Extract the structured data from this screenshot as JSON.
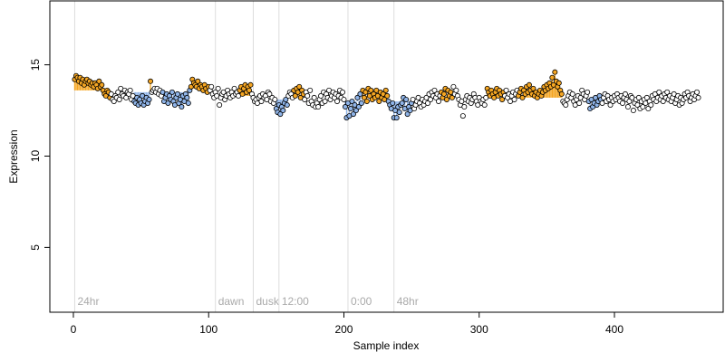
{
  "chart_data": {
    "type": "scatter",
    "xlabel": "Sample index",
    "ylabel": "Expression",
    "xlim": [
      -17.4,
      480.4
    ],
    "ylim": [
      1.45,
      18.5
    ],
    "xticks": [
      0,
      100,
      200,
      300,
      400
    ],
    "yticks": [
      5,
      10,
      15
    ],
    "point_color": "#ffffff",
    "edge_color": "#000000",
    "line_color": "#dddddd",
    "markers": [
      {
        "x": 1,
        "label": "24hr"
      },
      {
        "x": 105,
        "label": "dawn"
      },
      {
        "x": 133,
        "label": "dusk"
      },
      {
        "x": 152,
        "label": "12:00"
      },
      {
        "x": 203,
        "label": "0:00"
      },
      {
        "x": 237,
        "label": "48hr"
      }
    ],
    "regions": [
      {
        "start": 1,
        "end": 27,
        "level": 13.6,
        "color": "#f5a623"
      },
      {
        "start": 45,
        "end": 56,
        "level": 13.5,
        "color": "#8fb4e8"
      },
      {
        "start": 57,
        "end": 57,
        "level": 13.5,
        "color": "#f5a623"
      },
      {
        "start": 66,
        "end": 86,
        "level": 13.5,
        "color": "#8fb4e8"
      },
      {
        "start": 87,
        "end": 100,
        "level": 13.7,
        "color": "#f5a623"
      },
      {
        "start": 123,
        "end": 131,
        "level": 13.3,
        "color": "#f5a623"
      },
      {
        "start": 150,
        "end": 158,
        "level": 13.1,
        "color": "#8fb4e8"
      },
      {
        "start": 163,
        "end": 170,
        "level": 13.3,
        "color": "#f5a623"
      },
      {
        "start": 201,
        "end": 213,
        "level": 13.0,
        "color": "#8fb4e8"
      },
      {
        "start": 214,
        "end": 232,
        "level": 13.3,
        "color": "#f5a623"
      },
      {
        "start": 233,
        "end": 250,
        "level": 13.0,
        "color": "#8fb4e8"
      },
      {
        "start": 272,
        "end": 280,
        "level": 13.3,
        "color": "#f5a623"
      },
      {
        "start": 306,
        "end": 318,
        "level": 13.3,
        "color": "#f5a623"
      },
      {
        "start": 329,
        "end": 361,
        "level": 13.2,
        "color": "#f5a623"
      },
      {
        "start": 381,
        "end": 390,
        "level": 13.1,
        "color": "#8fb4e8"
      }
    ],
    "x": [
      1,
      2,
      3,
      4,
      5,
      6,
      7,
      8,
      9,
      10,
      11,
      12,
      13,
      14,
      15,
      16,
      17,
      18,
      19,
      20,
      21,
      22,
      23,
      24,
      25,
      26,
      27,
      28,
      29,
      30,
      31,
      32,
      33,
      34,
      35,
      36,
      37,
      38,
      39,
      40,
      41,
      42,
      43,
      44,
      45,
      46,
      47,
      48,
      49,
      50,
      51,
      52,
      53,
      54,
      55,
      56,
      57,
      58,
      59,
      60,
      61,
      62,
      63,
      64,
      65,
      66,
      67,
      68,
      69,
      70,
      71,
      72,
      73,
      74,
      75,
      76,
      77,
      78,
      79,
      80,
      81,
      82,
      83,
      84,
      85,
      86,
      87,
      88,
      89,
      90,
      91,
      92,
      93,
      94,
      95,
      96,
      97,
      98,
      99,
      100,
      101,
      102,
      103,
      104,
      105,
      106,
      107,
      108,
      109,
      110,
      111,
      112,
      113,
      114,
      115,
      116,
      117,
      118,
      119,
      120,
      121,
      122,
      123,
      124,
      125,
      126,
      127,
      128,
      129,
      130,
      131,
      132,
      133,
      134,
      135,
      136,
      137,
      138,
      139,
      140,
      141,
      142,
      143,
      144,
      145,
      146,
      147,
      148,
      149,
      150,
      151,
      152,
      153,
      154,
      155,
      156,
      157,
      158,
      159,
      160,
      161,
      162,
      163,
      164,
      165,
      166,
      167,
      168,
      169,
      170,
      171,
      172,
      173,
      174,
      175,
      176,
      177,
      178,
      179,
      180,
      181,
      182,
      183,
      184,
      185,
      186,
      187,
      188,
      189,
      190,
      191,
      192,
      193,
      194,
      195,
      196,
      197,
      198,
      199,
      200,
      201,
      202,
      203,
      204,
      205,
      206,
      207,
      208,
      209,
      210,
      211,
      212,
      213,
      214,
      215,
      216,
      217,
      218,
      219,
      220,
      221,
      222,
      223,
      224,
      225,
      226,
      227,
      228,
      229,
      230,
      231,
      232,
      233,
      234,
      235,
      236,
      237,
      238,
      239,
      240,
      241,
      242,
      243,
      244,
      245,
      246,
      247,
      248,
      249,
      250,
      251,
      252,
      253,
      254,
      255,
      256,
      257,
      258,
      259,
      260,
      261,
      262,
      263,
      264,
      265,
      266,
      267,
      268,
      269,
      270,
      271,
      272,
      273,
      274,
      275,
      276,
      277,
      278,
      279,
      280,
      281,
      282,
      283,
      284,
      285,
      286,
      287,
      288,
      289,
      290,
      291,
      292,
      293,
      294,
      295,
      296,
      297,
      298,
      299,
      300,
      301,
      302,
      303,
      304,
      305,
      306,
      307,
      308,
      309,
      310,
      311,
      312,
      313,
      314,
      315,
      316,
      317,
      318,
      319,
      320,
      321,
      322,
      323,
      324,
      325,
      326,
      327,
      328,
      329,
      330,
      331,
      332,
      333,
      334,
      335,
      336,
      337,
      338,
      339,
      340,
      341,
      342,
      343,
      344,
      345,
      346,
      347,
      348,
      349,
      350,
      351,
      352,
      353,
      354,
      355,
      356,
      357,
      358,
      359,
      360,
      361,
      362,
      363,
      364,
      365,
      366,
      367,
      368,
      369,
      370,
      371,
      372,
      373,
      374,
      375,
      376,
      377,
      378,
      379,
      380,
      381,
      382,
      383,
      384,
      385,
      386,
      387,
      388,
      389,
      390,
      391,
      392,
      393,
      394,
      395,
      396,
      397,
      398,
      399,
      400,
      401,
      402,
      403,
      404,
      405,
      406,
      407,
      408,
      409,
      410,
      411,
      412,
      413,
      414,
      415,
      416,
      417,
      418,
      419,
      420,
      421,
      422,
      423,
      424,
      425,
      426,
      427,
      428,
      429,
      430,
      431,
      432,
      433,
      434,
      435,
      436,
      437,
      438,
      439,
      440,
      441,
      442,
      443,
      444,
      445,
      446,
      447,
      448,
      449,
      450,
      451,
      452,
      453,
      454,
      455,
      456,
      457,
      458,
      459,
      460,
      461,
      462
    ],
    "values": [
      14.2,
      14.4,
      14.3,
      14.1,
      14.3,
      14.0,
      14.2,
      13.9,
      14.1,
      14.2,
      14.0,
      14.1,
      13.9,
      14.0,
      13.8,
      14.0,
      13.9,
      13.7,
      14.1,
      13.8,
      13.9,
      13.6,
      13.4,
      13.3,
      13.6,
      13.5,
      13.2,
      13.4,
      13.1,
      13.0,
      13.3,
      13.2,
      13.5,
      13.1,
      13.7,
      13.4,
      13.3,
      13.6,
      13.2,
      13.5,
      13.4,
      13.6,
      13.1,
      13.3,
      13.0,
      12.9,
      13.2,
      12.8,
      13.1,
      12.9,
      13.3,
      12.8,
      13.0,
      13.2,
      12.9,
      13.1,
      14.1,
      13.5,
      13.6,
      13.7,
      13.5,
      13.7,
      13.4,
      13.6,
      13.3,
      13.5,
      13.0,
      13.2,
      13.4,
      12.9,
      13.3,
      13.1,
      13.5,
      13.0,
      12.8,
      13.2,
      13.4,
      12.9,
      13.1,
      12.7,
      13.3,
      13.0,
      13.4,
      13.2,
      12.9,
      13.6,
      13.8,
      14.2,
      14.0,
      13.9,
      13.8,
      14.1,
      13.7,
      13.9,
      13.8,
      13.6,
      13.9,
      13.7,
      13.5,
      13.8,
      13.6,
      13.8,
      13.4,
      13.2,
      13.5,
      13.3,
      13.7,
      12.8,
      13.2,
      13.4,
      13.5,
      13.1,
      13.3,
      13.6,
      13.4,
      13.2,
      13.5,
      13.3,
      13.7,
      13.4,
      13.5,
      13.3,
      13.6,
      13.8,
      13.4,
      13.7,
      13.9,
      13.5,
      13.8,
      13.6,
      13.9,
      13.4,
      13.2,
      13.0,
      13.1,
      12.9,
      13.2,
      13.3,
      13.0,
      13.4,
      13.2,
      13.3,
      13.1,
      13.5,
      13.4,
      13.0,
      13.2,
      12.9,
      13.1,
      12.6,
      12.4,
      12.8,
      12.3,
      12.7,
      12.5,
      12.9,
      13.1,
      12.8,
      13.3,
      13.5,
      13.4,
      13.2,
      13.6,
      13.3,
      13.7,
      13.5,
      13.8,
      13.2,
      13.6,
      13.4,
      13.1,
      13.5,
      13.3,
      12.9,
      13.6,
      13.0,
      12.8,
      13.2,
      12.7,
      12.9,
      12.7,
      13.1,
      13.3,
      12.9,
      13.5,
      13.0,
      13.4,
      13.2,
      13.6,
      13.1,
      13.3,
      13.5,
      13.2,
      13.4,
      13.0,
      13.3,
      13.6,
      13.2,
      13.5,
      13.1,
      12.7,
      12.1,
      12.9,
      12.2,
      12.6,
      13.0,
      12.3,
      12.8,
      12.5,
      13.2,
      12.7,
      13.4,
      12.9,
      13.6,
      13.2,
      13.5,
      13.0,
      13.7,
      13.3,
      13.6,
      13.1,
      13.4,
      13.2,
      13.6,
      13.3,
      13.0,
      13.5,
      13.2,
      13.4,
      13.1,
      13.6,
      13.3,
      13.0,
      12.8,
      12.6,
      12.9,
      12.1,
      12.5,
      12.1,
      12.7,
      12.4,
      12.8,
      12.9,
      13.2,
      12.6,
      13.1,
      12.3,
      12.7,
      12.5,
      12.9,
      13.1,
      12.6,
      12.8,
      13.0,
      13.2,
      12.9,
      12.7,
      13.1,
      12.8,
      13.0,
      13.2,
      12.9,
      13.4,
      13.1,
      13.5,
      13.3,
      13.6,
      13.2,
      13.4,
      13.0,
      13.3,
      13.5,
      13.2,
      13.4,
      13.7,
      13.1,
      13.6,
      13.3,
      13.5,
      13.2,
      13.8,
      13.4,
      13.6,
      13.3,
      13.1,
      12.8,
      13.0,
      12.2,
      12.7,
      13.1,
      13.3,
      13.0,
      13.2,
      12.9,
      13.1,
      13.4,
      13.2,
      13.0,
      12.8,
      13.2,
      13.0,
      12.9,
      13.1,
      12.8,
      13.2,
      13.7,
      13.5,
      13.3,
      13.6,
      13.4,
      13.2,
      13.5,
      13.7,
      13.3,
      13.6,
      13.4,
      13.1,
      13.5,
      13.3,
      13.6,
      13.2,
      13.4,
      13.0,
      13.3,
      13.5,
      13.1,
      13.4,
      13.6,
      13.3,
      13.5,
      13.7,
      13.2,
      13.6,
      13.4,
      13.8,
      13.5,
      13.9,
      13.6,
      13.4,
      13.7,
      13.3,
      13.5,
      13.2,
      13.4,
      13.6,
      13.3,
      13.5,
      13.8,
      13.6,
      13.9,
      13.7,
      14.0,
      13.8,
      14.3,
      13.9,
      14.6,
      14.1,
      13.8,
      14.0,
      13.6,
      13.4,
      13.0,
      12.9,
      12.8,
      13.1,
      13.3,
      13.5,
      13.2,
      13.4,
      13.0,
      12.8,
      13.1,
      13.3,
      12.9,
      13.2,
      13.6,
      13.4,
      13.1,
      13.3,
      13.5,
      13.0,
      12.6,
      13.1,
      12.7,
      12.9,
      13.2,
      12.8,
      13.0,
      13.3,
      13.1,
      12.9,
      13.2,
      13.4,
      13.0,
      13.3,
      13.1,
      12.8,
      13.2,
      13.0,
      13.3,
      13.1,
      13.4,
      13.2,
      13.0,
      13.3,
      12.9,
      13.2,
      13.4,
      13.1,
      12.7,
      13.0,
      13.3,
      13.2,
      12.5,
      12.9,
      13.1,
      12.8,
      13.2,
      12.6,
      13.0,
      12.7,
      13.1,
      12.9,
      13.2,
      12.6,
      13.0,
      12.8,
      13.3,
      13.1,
      13.4,
      13.0,
      13.2,
      13.5,
      13.1,
      13.3,
      13.0,
      13.4,
      13.2,
      13.5,
      13.1,
      13.3,
      13.0,
      13.2,
      13.4,
      12.9,
      13.1,
      13.3,
      12.8,
      13.2,
      12.9,
      13.1,
      13.4,
      13.2,
      13.5,
      13.3,
      13.0,
      13.2,
      13.4,
      13.1,
      13.3,
      13.5,
      13.2
    ]
  }
}
